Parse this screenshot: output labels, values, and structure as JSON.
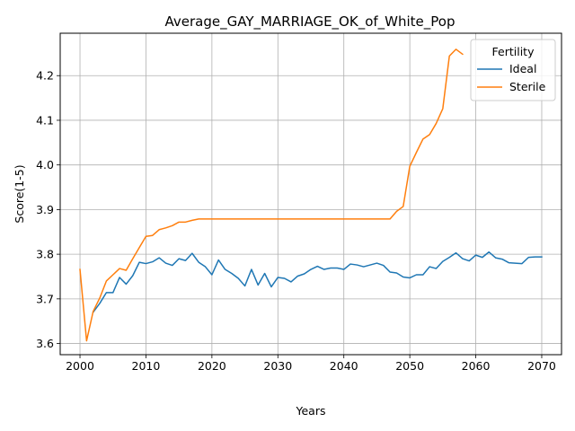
{
  "chart_data": {
    "type": "line",
    "title": "Average_GAY_MARRIAGE_OK_of_White_Pop",
    "xlabel": "Years",
    "ylabel": "Score(1-5)",
    "xlim": [
      1997,
      2073
    ],
    "ylim": [
      3.575,
      4.295
    ],
    "xticks": [
      2000,
      2010,
      2020,
      2030,
      2040,
      2050,
      2060,
      2070
    ],
    "yticks": [
      3.6,
      3.7,
      3.8,
      3.9,
      4.0,
      4.1,
      4.2
    ],
    "grid": true,
    "legend": {
      "title": "Fertility",
      "position": "top-right"
    },
    "series": [
      {
        "name": "Ideal",
        "color": "#1f77b4",
        "x": [
          2002,
          2003,
          2004,
          2005,
          2006,
          2007,
          2008,
          2009,
          2010,
          2011,
          2012,
          2013,
          2014,
          2015,
          2016,
          2017,
          2018,
          2019,
          2020,
          2021,
          2022,
          2023,
          2024,
          2025,
          2026,
          2027,
          2028,
          2029,
          2030,
          2031,
          2032,
          2033,
          2034,
          2035,
          2036,
          2037,
          2038,
          2039,
          2040,
          2041,
          2042,
          2043,
          2044,
          2045,
          2046,
          2047,
          2048,
          2049,
          2050,
          2051,
          2052,
          2053,
          2054,
          2055,
          2056,
          2057,
          2058,
          2059,
          2060,
          2061,
          2062,
          2063,
          2064,
          2065,
          2066,
          2067,
          2068,
          2069,
          2070
        ],
        "values": [
          3.67,
          3.69,
          3.714,
          3.714,
          3.748,
          3.733,
          3.752,
          3.782,
          3.779,
          3.783,
          3.792,
          3.78,
          3.775,
          3.79,
          3.786,
          3.802,
          3.782,
          3.772,
          3.754,
          3.787,
          3.766,
          3.757,
          3.746,
          3.729,
          3.766,
          3.731,
          3.757,
          3.727,
          3.748,
          3.746,
          3.738,
          3.751,
          3.756,
          3.766,
          3.773,
          3.766,
          3.769,
          3.769,
          3.766,
          3.778,
          3.776,
          3.772,
          3.776,
          3.78,
          3.775,
          3.76,
          3.758,
          3.749,
          3.747,
          3.754,
          3.754,
          3.772,
          3.768,
          3.784,
          3.793,
          3.803,
          3.79,
          3.785,
          3.798,
          3.793,
          3.805,
          3.792,
          3.789,
          3.781,
          3.78,
          3.779,
          3.793,
          3.794,
          3.794
        ]
      },
      {
        "name": "Sterile",
        "color": "#ff7f0e",
        "x": [
          2000,
          2001,
          2002,
          2003,
          2004,
          2005,
          2006,
          2007,
          2008,
          2009,
          2010,
          2011,
          2012,
          2013,
          2014,
          2015,
          2016,
          2017,
          2018,
          2019,
          2020,
          2021,
          2022,
          2023,
          2024,
          2025,
          2026,
          2027,
          2028,
          2029,
          2030,
          2031,
          2032,
          2033,
          2034,
          2035,
          2036,
          2037,
          2038,
          2039,
          2040,
          2041,
          2042,
          2043,
          2044,
          2045,
          2046,
          2047,
          2048,
          2049,
          2050,
          2051,
          2052,
          2053,
          2054,
          2055,
          2056,
          2057,
          2058
        ],
        "values": [
          3.766,
          3.606,
          3.672,
          3.702,
          3.74,
          3.754,
          3.768,
          3.764,
          3.79,
          3.815,
          3.84,
          3.842,
          3.855,
          3.859,
          3.864,
          3.872,
          3.872,
          3.876,
          3.879,
          3.879,
          3.879,
          3.879,
          3.879,
          3.879,
          3.879,
          3.879,
          3.879,
          3.879,
          3.879,
          3.879,
          3.879,
          3.879,
          3.879,
          3.879,
          3.879,
          3.879,
          3.879,
          3.879,
          3.879,
          3.879,
          3.879,
          3.879,
          3.879,
          3.879,
          3.879,
          3.879,
          3.879,
          3.879,
          3.896,
          3.907,
          3.997,
          4.028,
          4.058,
          4.068,
          4.093,
          4.126,
          4.244,
          4.259,
          4.248
        ]
      }
    ]
  }
}
